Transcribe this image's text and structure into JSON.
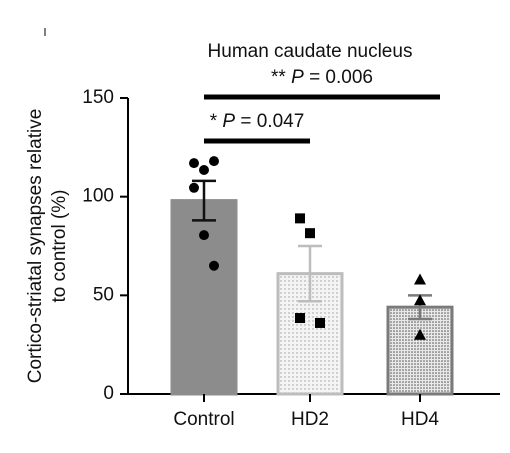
{
  "chart_data": {
    "type": "bar",
    "title": "Human caudate nucleus",
    "ylabel": [
      "Cortico-striatal synapses relative",
      "to control (%)"
    ],
    "categories": [
      "Control",
      "HD2",
      "HD4"
    ],
    "values": [
      98,
      61,
      44
    ],
    "errors": [
      10,
      14,
      6
    ],
    "points": [
      [
        117,
        113.5,
        118,
        104.5,
        80.5,
        65
      ],
      [
        89,
        81.5,
        36,
        38.5
      ],
      [
        58,
        47.5,
        30
      ]
    ],
    "colors": [
      "#8c8c8c",
      "#f2f2f2",
      "#c8c8c8"
    ],
    "edge_colors": [
      "#8c8c8c",
      "#bdbdbd",
      "#7a7a7a"
    ],
    "markers": [
      "circle",
      "square",
      "triangle"
    ],
    "ylim": [
      0,
      150
    ],
    "yticks": [
      0,
      50,
      100,
      150
    ],
    "comparisons": [
      {
        "from": 0,
        "to": 2,
        "stars": "**",
        "p": "P",
        "rest": "= 0.006"
      },
      {
        "from": 0,
        "to": 1,
        "stars": "*",
        "p": "P",
        "rest": "= 0.047"
      }
    ]
  }
}
